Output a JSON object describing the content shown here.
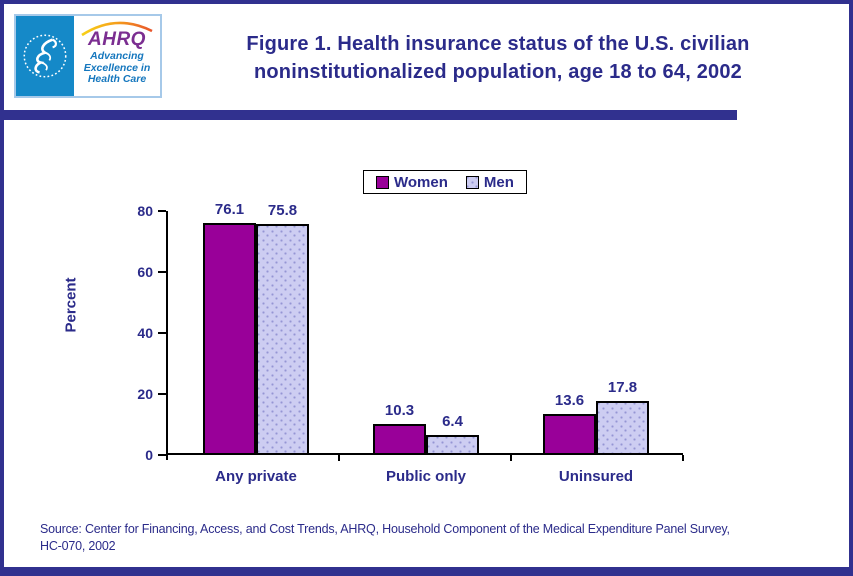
{
  "header": {
    "title_line1": "Figure 1. Health insurance status of the U.S. civilian",
    "title_line2": "noninstitutionalized population, age 18 to 64, 2002",
    "logo": {
      "ahrq_acronym": "AHRQ",
      "tagline_line1": "Advancing",
      "tagline_line2": "Excellence in",
      "tagline_line3": "Health Care"
    }
  },
  "chart_data": {
    "type": "bar",
    "categories": [
      "Any private",
      "Public only",
      "Uninsured"
    ],
    "series": [
      {
        "name": "Women",
        "values": [
          76.1,
          10.3,
          13.6
        ],
        "color": "#990099",
        "pattern": "solid"
      },
      {
        "name": "Men",
        "values": [
          75.8,
          6.4,
          17.8
        ],
        "color": "#CDCDF2",
        "pattern": "dots"
      }
    ],
    "title": "",
    "xlabel": "",
    "ylabel": "Percent",
    "ylim": [
      0,
      80
    ],
    "yticks": [
      0,
      20,
      40,
      60,
      80
    ],
    "legend_position": "top-center",
    "grid": false,
    "value_labels_shown": true
  },
  "source": {
    "line1": "Source: Center for Financing, Access, and Cost Trends, AHRQ, Household Component of the Medical Expenditure Panel Survey,",
    "line2": "HC-070, 2002"
  },
  "colors": {
    "page_border_navy": "#31318F",
    "text_navy": "#2B2B8A",
    "women_bar": "#990099",
    "men_bar": "#CDCDF2",
    "men_bar_dot": "#9595D4",
    "axis": "#000000",
    "hhs_blue": "#1589C8",
    "ahrq_purple": "#7B2E91",
    "tagline_blue": "#1577BE"
  }
}
